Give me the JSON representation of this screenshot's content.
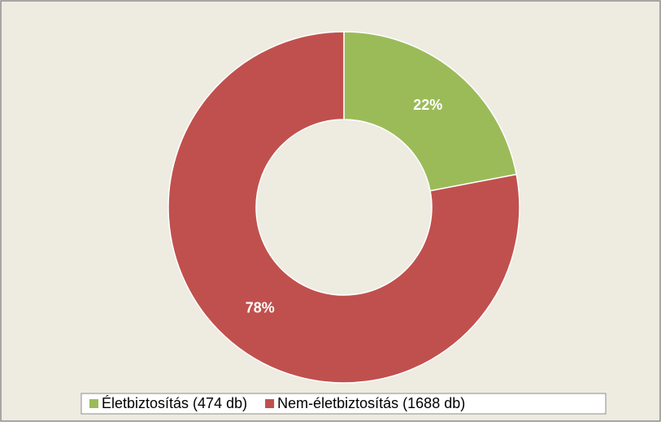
{
  "chart_data": {
    "type": "doughnut",
    "categories": [
      "Életbiztosítás (474 db)",
      "Nem-életbiztosítás (1688 db)"
    ],
    "values": [
      22,
      78
    ],
    "value_labels": [
      "22%",
      "78%"
    ],
    "colors": [
      "#9bbb59",
      "#c0504d"
    ],
    "legend": "bottom"
  }
}
